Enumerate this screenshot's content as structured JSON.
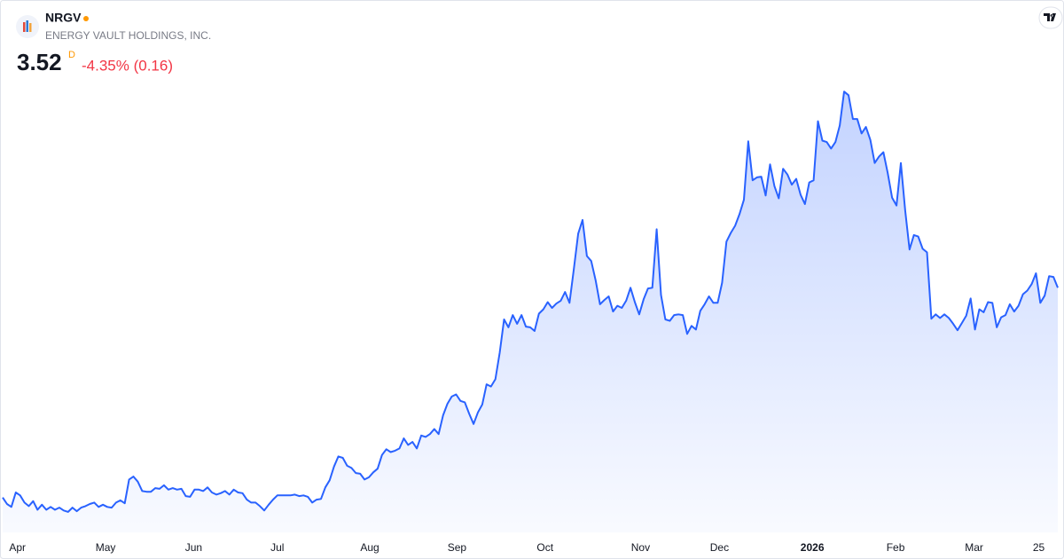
{
  "header": {
    "symbol": "NRGV",
    "company": "ENERGY VAULT HOLDINGS, INC.",
    "price": 3.52,
    "interval": "D",
    "change": "-4.35% (0.16)"
  },
  "chart_data": {
    "type": "area",
    "color": "#2962ff",
    "values": [
      0.61,
      0.52,
      0.48,
      0.68,
      0.64,
      0.54,
      0.49,
      0.56,
      0.44,
      0.51,
      0.44,
      0.48,
      0.44,
      0.47,
      0.43,
      0.41,
      0.47,
      0.42,
      0.47,
      0.49,
      0.52,
      0.54,
      0.48,
      0.51,
      0.48,
      0.47,
      0.54,
      0.57,
      0.53,
      0.86,
      0.9,
      0.83,
      0.7,
      0.69,
      0.69,
      0.74,
      0.73,
      0.78,
      0.72,
      0.74,
      0.72,
      0.73,
      0.63,
      0.62,
      0.72,
      0.72,
      0.7,
      0.75,
      0.68,
      0.65,
      0.67,
      0.7,
      0.65,
      0.72,
      0.68,
      0.67,
      0.58,
      0.54,
      0.54,
      0.49,
      0.43,
      0.51,
      0.58,
      0.64,
      0.64,
      0.64,
      0.64,
      0.65,
      0.63,
      0.64,
      0.62,
      0.54,
      0.58,
      0.59,
      0.75,
      0.85,
      1.04,
      1.18,
      1.16,
      1.05,
      1.02,
      0.95,
      0.94,
      0.86,
      0.89,
      0.96,
      1.01,
      1.2,
      1.28,
      1.24,
      1.26,
      1.29,
      1.43,
      1.34,
      1.38,
      1.29,
      1.47,
      1.45,
      1.49,
      1.56,
      1.49,
      1.75,
      1.91,
      2.01,
      2.04,
      1.95,
      1.93,
      1.77,
      1.63,
      1.79,
      1.9,
      2.18,
      2.15,
      2.25,
      2.62,
      3.08,
      2.97,
      3.14,
      3.02,
      3.14,
      2.98,
      2.97,
      2.92,
      3.16,
      3.22,
      3.32,
      3.24,
      3.3,
      3.34,
      3.46,
      3.31,
      3.78,
      4.27,
      4.46,
      3.96,
      3.89,
      3.62,
      3.29,
      3.35,
      3.4,
      3.19,
      3.27,
      3.24,
      3.34,
      3.52,
      3.32,
      3.15,
      3.36,
      3.51,
      3.52,
      4.33,
      3.42,
      3.08,
      3.06,
      3.14,
      3.15,
      3.14,
      2.88,
      2.99,
      2.94,
      3.2,
      3.29,
      3.4,
      3.31,
      3.31,
      3.59,
      4.16,
      4.28,
      4.38,
      4.54,
      4.74,
      5.55,
      5.01,
      5.05,
      5.06,
      4.8,
      5.23,
      4.93,
      4.76,
      5.17,
      5.09,
      4.95,
      5.03,
      4.81,
      4.68,
      4.98,
      5.01,
      5.83,
      5.56,
      5.54,
      5.45,
      5.54,
      5.77,
      6.24,
      6.19,
      5.86,
      5.86,
      5.66,
      5.75,
      5.57,
      5.25,
      5.34,
      5.4,
      5.11,
      4.77,
      4.66,
      5.25,
      4.59,
      4.05,
      4.25,
      4.23,
      4.06,
      4.01,
      3.09,
      3.15,
      3.1,
      3.15,
      3.1,
      3.02,
      2.93,
      3.03,
      3.13,
      3.37,
      2.94,
      3.22,
      3.18,
      3.32,
      3.31,
      2.97,
      3.11,
      3.14,
      3.29,
      3.19,
      3.27,
      3.43,
      3.48,
      3.57,
      3.72,
      3.31,
      3.41,
      3.68,
      3.67,
      3.52
    ],
    "xlim": [
      0,
      242
    ],
    "xticks": [
      {
        "value": 3.4,
        "label": "Apr"
      },
      {
        "value": 23.6,
        "label": "May"
      },
      {
        "value": 43.8,
        "label": "Jun"
      },
      {
        "value": 63,
        "label": "Jul"
      },
      {
        "value": 84.2,
        "label": "Aug"
      },
      {
        "value": 104.2,
        "label": "Sep"
      },
      {
        "value": 124.4,
        "label": "Oct"
      },
      {
        "value": 146.3,
        "label": "Nov"
      },
      {
        "value": 164.4,
        "label": "Dec"
      },
      {
        "value": 185.7,
        "label": "2026"
      },
      {
        "value": 204.8,
        "label": "Feb"
      },
      {
        "value": 222.8,
        "label": "Mar"
      },
      {
        "value": 239,
        "label": "25"
      }
    ],
    "ylim": [
      0.2,
      6.6
    ]
  }
}
